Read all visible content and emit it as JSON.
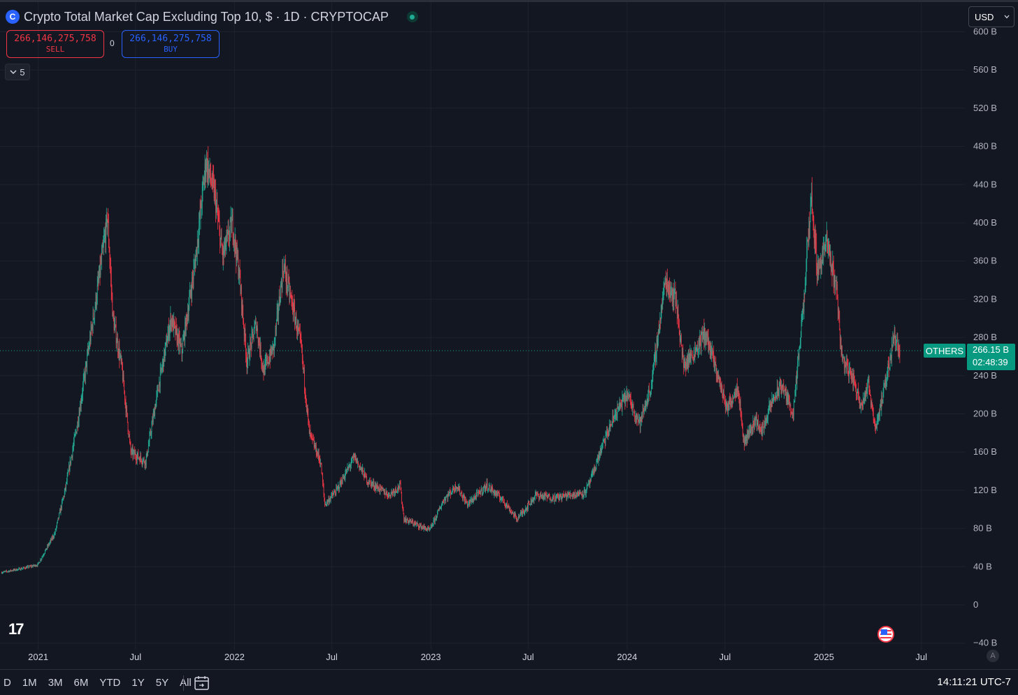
{
  "header": {
    "logo_glyph": "C",
    "title": "Crypto Total Market Cap Excluding Top 10, $ · 1D · CRYPTOCAP"
  },
  "trade": {
    "sell_price": "266,146,275,758",
    "sell_label": "SELL",
    "buy_price": "266,146,275,758",
    "buy_label": "BUY",
    "spread": "0"
  },
  "indicators_toggle": {
    "count": "5",
    "icon": "chevron-down-icon"
  },
  "currency": {
    "selected": "USD"
  },
  "price_tag": {
    "symbol": "OTHERS",
    "last_price": "266.15 B",
    "countdown": "02:48:39"
  },
  "bottom_bar": {
    "ranges": [
      "D",
      "1M",
      "3M",
      "6M",
      "YTD",
      "1Y",
      "5Y",
      "All"
    ],
    "time": "14:11:21 UTC-7",
    "auto_scale_label": "A"
  },
  "colors": {
    "background": "#131722",
    "up": "#22ab94",
    "down": "#f23645",
    "grid": "#1e222d",
    "accent": "#2962ff"
  },
  "chart_data": {
    "type": "candlestick",
    "title": "Crypto Total Market Cap Excluding Top 10, $ · 1D · CRYPTOCAP",
    "y_unit": "B USD",
    "y_ticks": [
      {
        "v": 600,
        "label": "600 B"
      },
      {
        "v": 560,
        "label": "560 B"
      },
      {
        "v": 520,
        "label": "520 B"
      },
      {
        "v": 480,
        "label": "480 B"
      },
      {
        "v": 440,
        "label": "440 B"
      },
      {
        "v": 400,
        "label": "400 B"
      },
      {
        "v": 360,
        "label": "360 B"
      },
      {
        "v": 320,
        "label": "320 B"
      },
      {
        "v": 280,
        "label": "280 B"
      },
      {
        "v": 240,
        "label": "240 B"
      },
      {
        "v": 200,
        "label": "200 B"
      },
      {
        "v": 160,
        "label": "160 B"
      },
      {
        "v": 120,
        "label": "120 B"
      },
      {
        "v": 80,
        "label": "80 B"
      },
      {
        "v": 40,
        "label": "40 B"
      },
      {
        "v": 0,
        "label": "0"
      },
      {
        "v": -40,
        "label": "−40 B"
      }
    ],
    "x_ticks": [
      {
        "date": "2021-01-01",
        "label": "2021"
      },
      {
        "date": "2021-07-01",
        "label": "Jul"
      },
      {
        "date": "2022-01-01",
        "label": "2022"
      },
      {
        "date": "2022-07-01",
        "label": "Jul"
      },
      {
        "date": "2023-01-01",
        "label": "2023"
      },
      {
        "date": "2023-07-01",
        "label": "Jul"
      },
      {
        "date": "2024-01-01",
        "label": "2024"
      },
      {
        "date": "2024-07-01",
        "label": "Jul"
      },
      {
        "date": "2025-01-01",
        "label": "2025"
      },
      {
        "date": "2025-07-01",
        "label": "Jul"
      }
    ],
    "x_range": [
      "2020-10-22",
      "2025-09-20"
    ],
    "y_range": [
      -40,
      600
    ],
    "last_value": 266.15,
    "series": [
      {
        "name": "OTHERS",
        "points": [
          {
            "date": "2020-10-25",
            "value": 34
          },
          {
            "date": "2020-12-01",
            "value": 38
          },
          {
            "date": "2020-12-31",
            "value": 42
          },
          {
            "date": "2021-02-01",
            "value": 75
          },
          {
            "date": "2021-02-20",
            "value": 120
          },
          {
            "date": "2021-03-15",
            "value": 190
          },
          {
            "date": "2021-04-16",
            "value": 310
          },
          {
            "date": "2021-05-10",
            "value": 405
          },
          {
            "date": "2021-05-20",
            "value": 300
          },
          {
            "date": "2021-06-05",
            "value": 250
          },
          {
            "date": "2021-06-22",
            "value": 160
          },
          {
            "date": "2021-07-20",
            "value": 150
          },
          {
            "date": "2021-08-10",
            "value": 220
          },
          {
            "date": "2021-09-05",
            "value": 300
          },
          {
            "date": "2021-09-25",
            "value": 265
          },
          {
            "date": "2021-10-20",
            "value": 360
          },
          {
            "date": "2021-11-09",
            "value": 465
          },
          {
            "date": "2021-11-25",
            "value": 430
          },
          {
            "date": "2021-12-10",
            "value": 365
          },
          {
            "date": "2021-12-28",
            "value": 400
          },
          {
            "date": "2022-01-10",
            "value": 345
          },
          {
            "date": "2022-01-24",
            "value": 255
          },
          {
            "date": "2022-02-10",
            "value": 295
          },
          {
            "date": "2022-02-24",
            "value": 245
          },
          {
            "date": "2022-03-15",
            "value": 270
          },
          {
            "date": "2022-04-02",
            "value": 355
          },
          {
            "date": "2022-04-20",
            "value": 310
          },
          {
            "date": "2022-05-05",
            "value": 270
          },
          {
            "date": "2022-05-20",
            "value": 180
          },
          {
            "date": "2022-06-10",
            "value": 150
          },
          {
            "date": "2022-06-18",
            "value": 105
          },
          {
            "date": "2022-07-10",
            "value": 120
          },
          {
            "date": "2022-08-12",
            "value": 155
          },
          {
            "date": "2022-09-05",
            "value": 130
          },
          {
            "date": "2022-10-15",
            "value": 115
          },
          {
            "date": "2022-11-05",
            "value": 125
          },
          {
            "date": "2022-11-12",
            "value": 90
          },
          {
            "date": "2022-12-30",
            "value": 78
          },
          {
            "date": "2023-01-25",
            "value": 110
          },
          {
            "date": "2023-02-18",
            "value": 125
          },
          {
            "date": "2023-03-10",
            "value": 105
          },
          {
            "date": "2023-04-15",
            "value": 125
          },
          {
            "date": "2023-05-15",
            "value": 110
          },
          {
            "date": "2023-06-10",
            "value": 90
          },
          {
            "date": "2023-06-25",
            "value": 100
          },
          {
            "date": "2023-07-15",
            "value": 115
          },
          {
            "date": "2023-08-18",
            "value": 112
          },
          {
            "date": "2023-09-15",
            "value": 115
          },
          {
            "date": "2023-10-15",
            "value": 118
          },
          {
            "date": "2023-10-25",
            "value": 130
          },
          {
            "date": "2023-11-15",
            "value": 165
          },
          {
            "date": "2023-12-10",
            "value": 200
          },
          {
            "date": "2024-01-01",
            "value": 220
          },
          {
            "date": "2024-01-25",
            "value": 190
          },
          {
            "date": "2024-02-15",
            "value": 230
          },
          {
            "date": "2024-03-12",
            "value": 340
          },
          {
            "date": "2024-04-01",
            "value": 320
          },
          {
            "date": "2024-04-15",
            "value": 250
          },
          {
            "date": "2024-05-05",
            "value": 265
          },
          {
            "date": "2024-05-25",
            "value": 285
          },
          {
            "date": "2024-06-15",
            "value": 245
          },
          {
            "date": "2024-07-05",
            "value": 205
          },
          {
            "date": "2024-07-25",
            "value": 230
          },
          {
            "date": "2024-08-05",
            "value": 170
          },
          {
            "date": "2024-08-28",
            "value": 195
          },
          {
            "date": "2024-09-06",
            "value": 180
          },
          {
            "date": "2024-09-28",
            "value": 215
          },
          {
            "date": "2024-10-15",
            "value": 230
          },
          {
            "date": "2024-11-05",
            "value": 200
          },
          {
            "date": "2024-11-25",
            "value": 320
          },
          {
            "date": "2024-12-08",
            "value": 430
          },
          {
            "date": "2024-12-20",
            "value": 350
          },
          {
            "date": "2025-01-06",
            "value": 380
          },
          {
            "date": "2025-01-25",
            "value": 330
          },
          {
            "date": "2025-02-03",
            "value": 260
          },
          {
            "date": "2025-02-25",
            "value": 235
          },
          {
            "date": "2025-03-11",
            "value": 210
          },
          {
            "date": "2025-03-25",
            "value": 230
          },
          {
            "date": "2025-04-07",
            "value": 185
          },
          {
            "date": "2025-04-25",
            "value": 230
          },
          {
            "date": "2025-05-12",
            "value": 285
          },
          {
            "date": "2025-05-22",
            "value": 266
          }
        ]
      }
    ]
  }
}
